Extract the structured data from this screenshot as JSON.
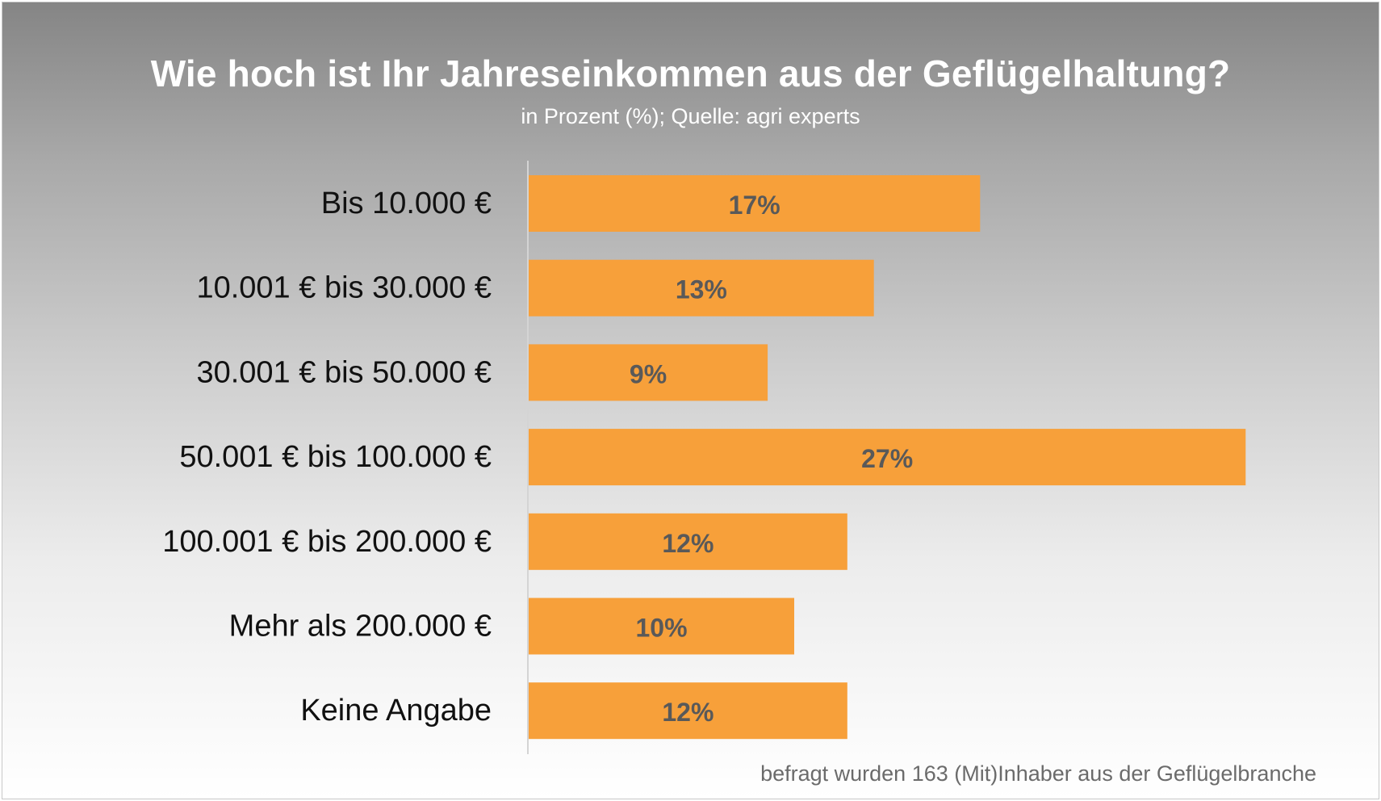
{
  "chart_data": {
    "type": "bar",
    "orientation": "horizontal",
    "title": "Wie hoch ist Ihr Jahreseinkommen aus der Geflügelhaltung?",
    "subtitle": "in Prozent (%); Quelle: agri experts",
    "categories": [
      "Bis 10.000 €",
      "10.001 € bis 30.000 €",
      "30.001 € bis 50.000 €",
      "50.001 € bis 100.000 €",
      "100.001 € bis 200.000 €",
      "Mehr als 200.000 €",
      "Keine Angabe"
    ],
    "values": [
      17,
      13,
      9,
      27,
      12,
      10,
      12
    ],
    "data_labels": [
      "17%",
      "13%",
      "9%",
      "27%",
      "12%",
      "10%",
      "12%"
    ],
    "unit": "%",
    "bar_color": "#f7a03a",
    "label_color": "#595959",
    "footnote": "befragt wurden 163 (Mit)Inhaber aus der Geflügelbranche",
    "grid": false,
    "legend": "none"
  }
}
